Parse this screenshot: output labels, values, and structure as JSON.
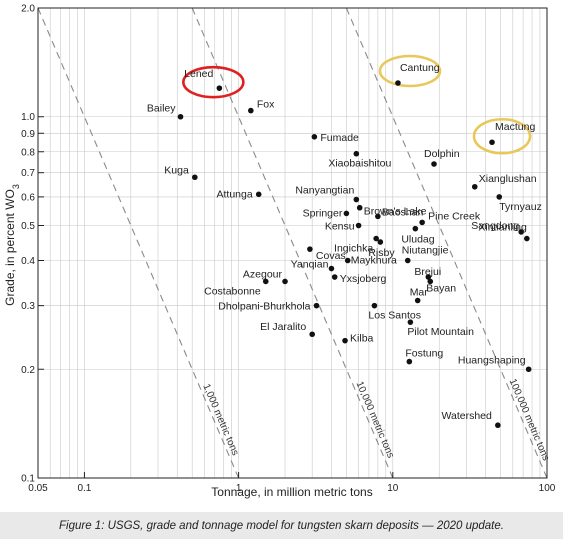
{
  "caption": "Figure 1: USGS, grade and tonnage model for tungsten skarn deposits — 2020 update.",
  "chart_data": {
    "type": "scatter",
    "xlabel": "Tonnage, in million metric tons",
    "ylabel": "Grade, in percent WO3",
    "xscale": "log",
    "yscale": "log",
    "xlim": [
      0.05,
      100
    ],
    "ylim": [
      0.1,
      2.0
    ],
    "xticks": [
      {
        "value": 0.05,
        "label": "0.05"
      },
      {
        "value": 0.1,
        "label": "0.1"
      },
      {
        "value": 1,
        "label": "1"
      },
      {
        "value": 10,
        "label": "10"
      },
      {
        "value": 100,
        "label": "100"
      }
    ],
    "yticks": [
      {
        "value": 0.1,
        "label": "0.1"
      },
      {
        "value": 0.2,
        "label": "0.2"
      },
      {
        "value": 0.3,
        "label": "0.3"
      },
      {
        "value": 0.4,
        "label": "0.4"
      },
      {
        "value": 0.5,
        "label": "0.5"
      },
      {
        "value": 0.6,
        "label": "0.6"
      },
      {
        "value": 0.7,
        "label": "0.7"
      },
      {
        "value": 0.8,
        "label": "0.8"
      },
      {
        "value": 0.9,
        "label": "0.9"
      },
      {
        "value": 1.0,
        "label": "1.0"
      },
      {
        "value": 2.0,
        "label": "2.0"
      }
    ],
    "grid": true,
    "contours": [
      {
        "label": "1,000 metric tons",
        "tonnage_grade": 1000
      },
      {
        "label": "10,000 metric tons",
        "tonnage_grade": 10000
      },
      {
        "label": "100,000 metric tons",
        "tonnage_grade": 100000
      }
    ],
    "highlighted": [
      {
        "name": "Lened",
        "color": "#e02020"
      },
      {
        "name": "Cantung",
        "color": "#e8c85a"
      },
      {
        "name": "Mactung",
        "color": "#e8c85a"
      }
    ],
    "points": [
      {
        "name": "Lened",
        "x": 0.75,
        "y": 1.2
      },
      {
        "name": "Bailey",
        "x": 0.42,
        "y": 1.0
      },
      {
        "name": "Fox",
        "x": 1.2,
        "y": 1.04
      },
      {
        "name": "Cantung",
        "x": 10.8,
        "y": 1.24
      },
      {
        "name": "Mactung",
        "x": 44,
        "y": 0.85
      },
      {
        "name": "Fumade",
        "x": 3.1,
        "y": 0.88
      },
      {
        "name": "Dolphin",
        "x": 18.5,
        "y": 0.74
      },
      {
        "name": "Xiaobaishitou",
        "x": 5.8,
        "y": 0.79
      },
      {
        "name": "Kuga",
        "x": 0.52,
        "y": 0.68
      },
      {
        "name": "Xianglushan",
        "x": 34,
        "y": 0.64
      },
      {
        "name": "Attunga",
        "x": 1.35,
        "y": 0.61
      },
      {
        "name": "Nanyangtian",
        "x": 5.8,
        "y": 0.59
      },
      {
        "name": "Tyrnyauz",
        "x": 49,
        "y": 0.6
      },
      {
        "name": "Brown's Lake",
        "x": 6.1,
        "y": 0.56
      },
      {
        "name": "Springer",
        "x": 5.0,
        "y": 0.54
      },
      {
        "name": "Baoshan",
        "x": 8.0,
        "y": 0.53
      },
      {
        "name": "Pine Creek",
        "x": 15.5,
        "y": 0.51
      },
      {
        "name": "Kensu",
        "x": 6.0,
        "y": 0.5
      },
      {
        "name": "Uludag",
        "x": 14.0,
        "y": 0.49
      },
      {
        "name": "Sangdong",
        "x": 68,
        "y": 0.48
      },
      {
        "name": "Ingichka",
        "x": 7.8,
        "y": 0.46
      },
      {
        "name": "Risby",
        "x": 8.3,
        "y": 0.45
      },
      {
        "name": "Xintianling",
        "x": 74,
        "y": 0.46
      },
      {
        "name": "Covas",
        "x": 2.9,
        "y": 0.43
      },
      {
        "name": "Niutangjie",
        "x": 12.5,
        "y": 0.4
      },
      {
        "name": "Maykhura",
        "x": 5.1,
        "y": 0.4
      },
      {
        "name": "Yanqian",
        "x": 4.0,
        "y": 0.38
      },
      {
        "name": "Azegour",
        "x": 2.0,
        "y": 0.35
      },
      {
        "name": "Costabonne",
        "x": 1.5,
        "y": 0.35
      },
      {
        "name": "Yxsjoberg",
        "x": 4.2,
        "y": 0.36
      },
      {
        "name": "Brejui",
        "x": 17.0,
        "y": 0.36
      },
      {
        "name": "Bayan",
        "x": 17.5,
        "y": 0.35
      },
      {
        "name": "Mar",
        "x": 14.5,
        "y": 0.31
      },
      {
        "name": "Dholpani-Bhurkhola",
        "x": 3.2,
        "y": 0.3
      },
      {
        "name": "Los Santos",
        "x": 7.6,
        "y": 0.3
      },
      {
        "name": "Pilot Mountain",
        "x": 13.0,
        "y": 0.27
      },
      {
        "name": "El Jaralito",
        "x": 3.0,
        "y": 0.25
      },
      {
        "name": "Kilba",
        "x": 4.9,
        "y": 0.24
      },
      {
        "name": "Fostung",
        "x": 12.8,
        "y": 0.21
      },
      {
        "name": "Huangshaping",
        "x": 76,
        "y": 0.2
      },
      {
        "name": "Watershed",
        "x": 48,
        "y": 0.14
      }
    ]
  }
}
